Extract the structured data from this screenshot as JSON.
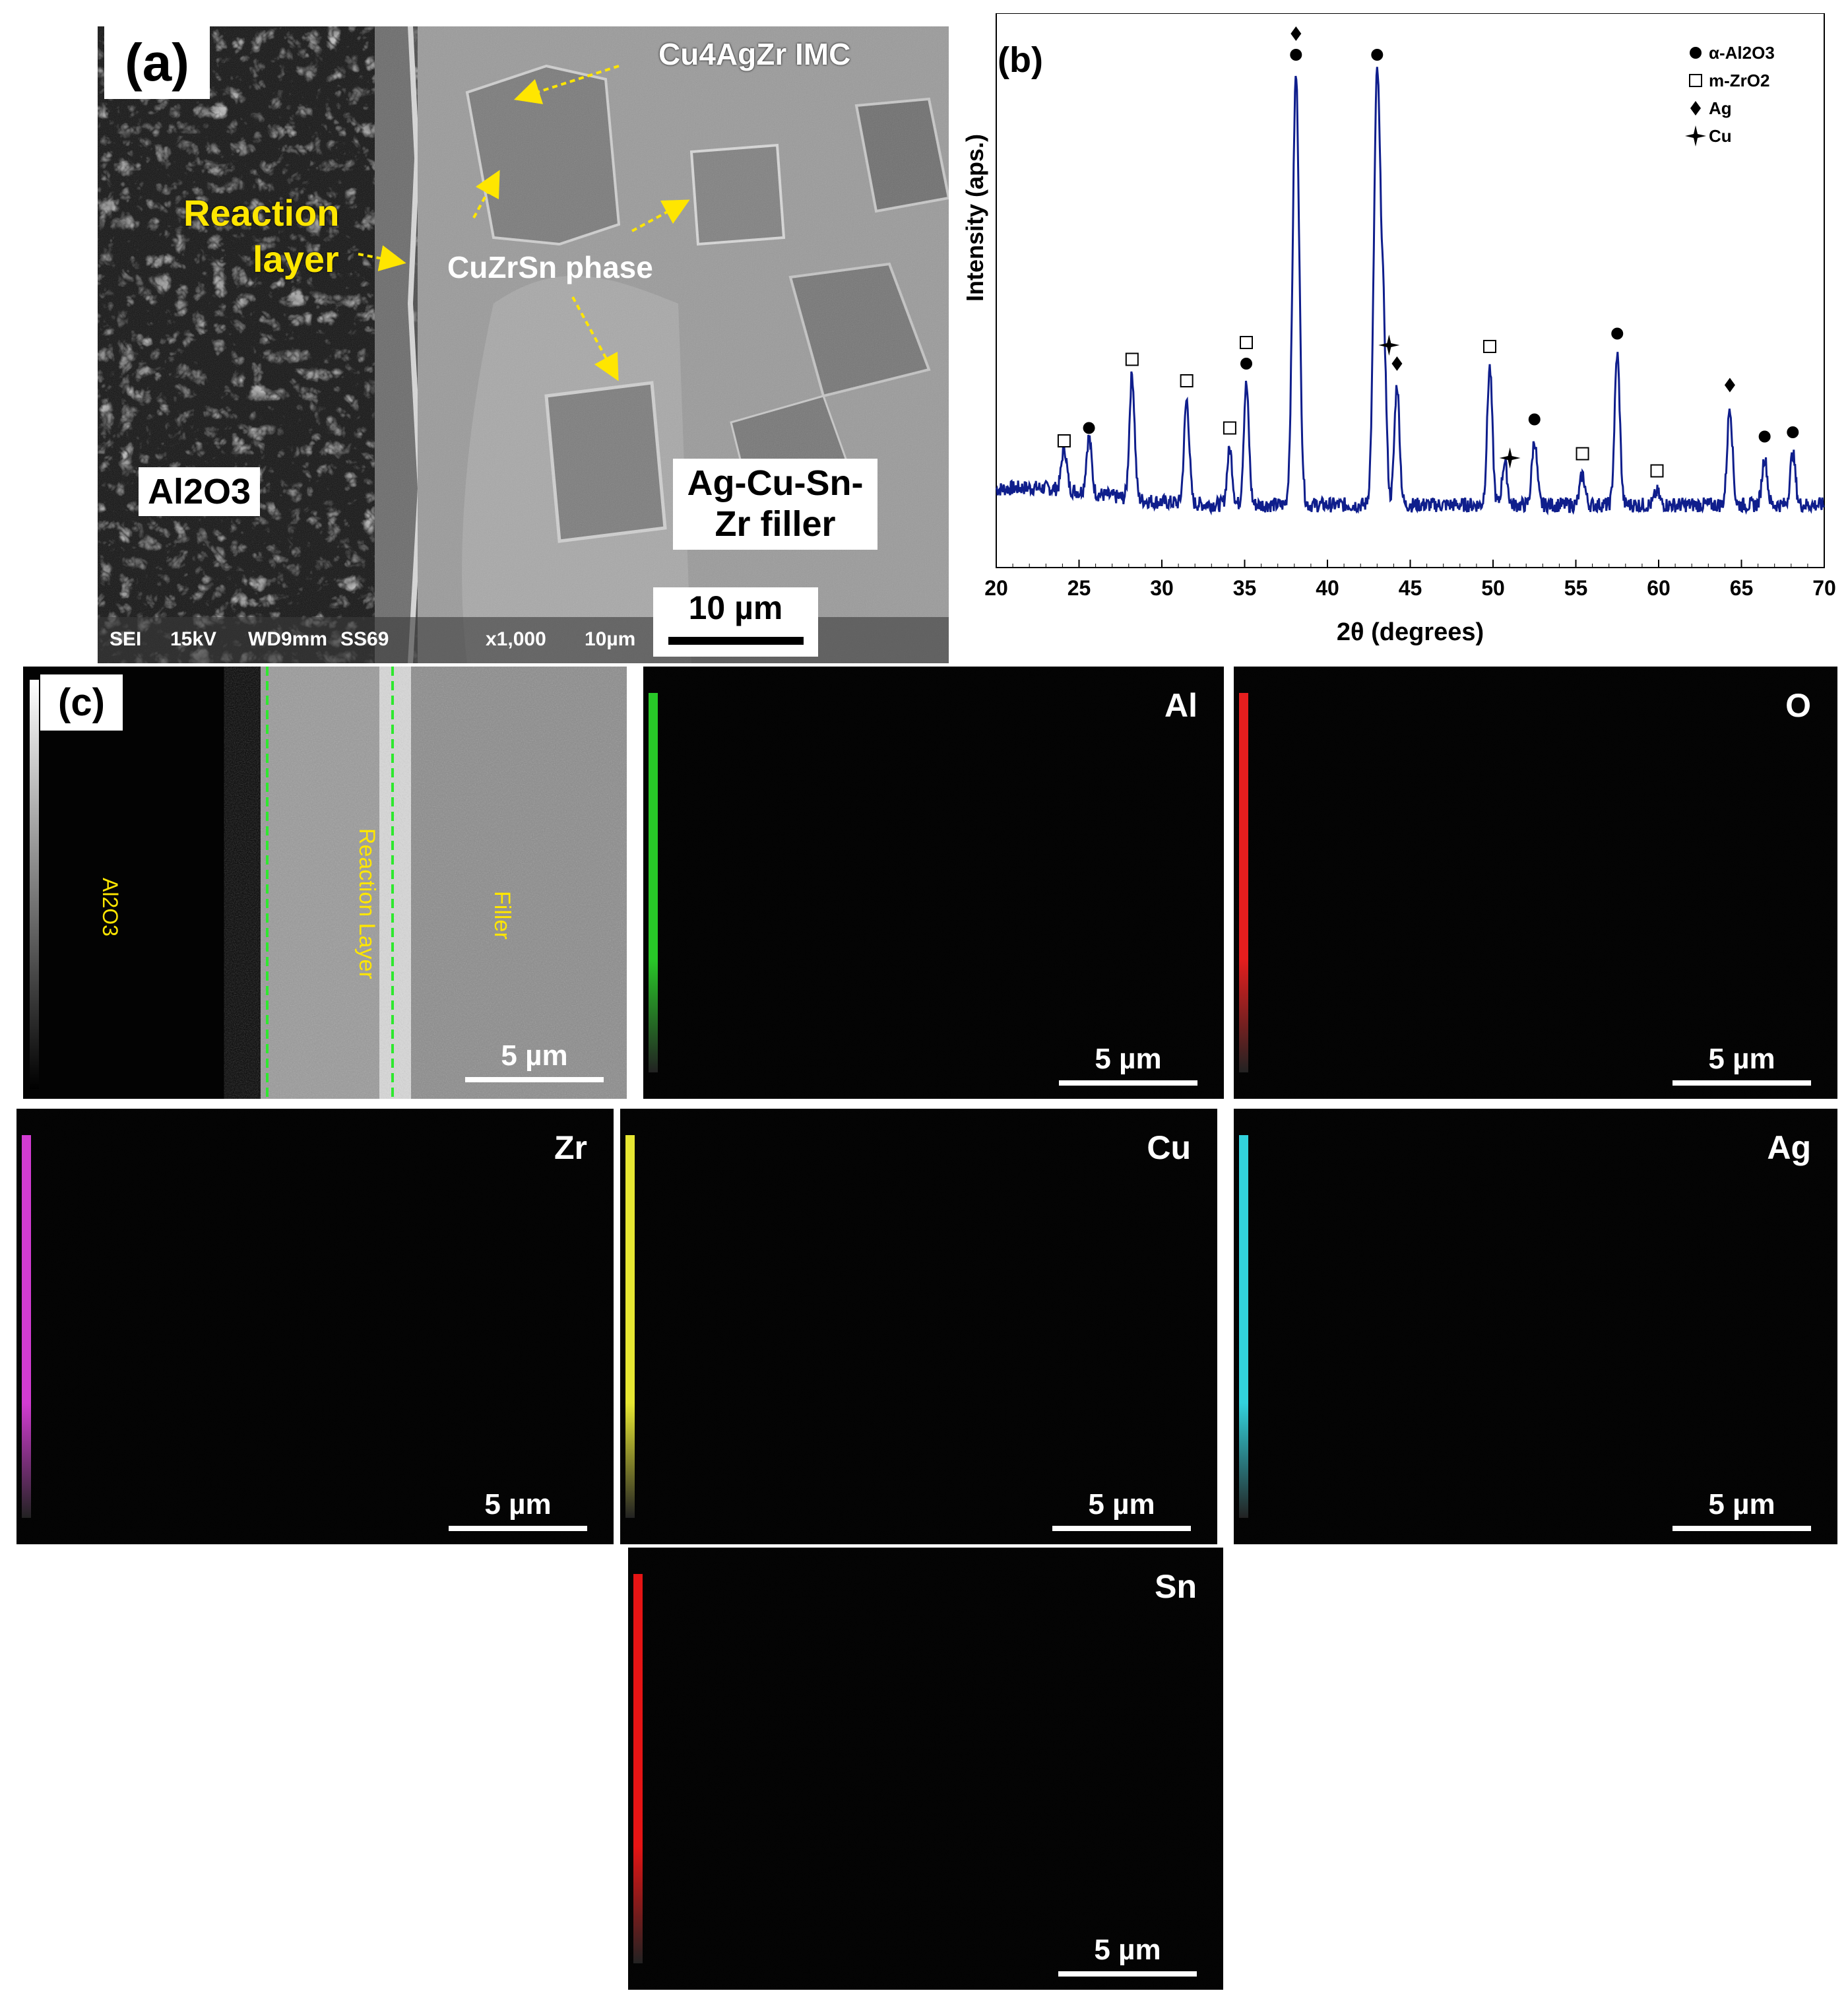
{
  "panel_a": {
    "label": "(a)",
    "annotations": {
      "imc": "Cu4AgZr IMC",
      "reaction_layer_1": "Reaction",
      "reaction_layer_2": "layer",
      "cuzrsn": "CuZrSn phase",
      "al2o3": "Al2O3",
      "filler_1": "Ag-Cu-Sn-",
      "filler_2": "Zr filler"
    },
    "sem_footer": {
      "mode": "SEI",
      "kv": "15kV",
      "wd": "WD9mm",
      "id": "SS69",
      "mag": "x1,000",
      "scale_small": "10µm"
    },
    "scale_bar": "10 µm"
  },
  "panel_b": {
    "label": "(b)",
    "legend": [
      "α-Al2O3",
      "m-ZrO2",
      "Ag",
      "Cu"
    ],
    "legend_markers": [
      "circle",
      "square",
      "diamond",
      "star"
    ]
  },
  "chart_data": {
    "type": "line",
    "xlabel": "2θ (degrees)",
    "ylabel": "Intensity (aps.)",
    "xlim": [
      20,
      70
    ],
    "xticks": [
      20,
      25,
      30,
      35,
      40,
      45,
      50,
      55,
      60,
      65,
      70
    ],
    "line_color": "#0f1e8c",
    "peaks": [
      {
        "x": 24.1,
        "y": 0.1,
        "phase": "m-ZrO2"
      },
      {
        "x": 25.6,
        "y": 0.13,
        "phase": "α-Al2O3"
      },
      {
        "x": 28.2,
        "y": 0.29,
        "phase": "m-ZrO2"
      },
      {
        "x": 31.5,
        "y": 0.24,
        "phase": "m-ZrO2"
      },
      {
        "x": 34.1,
        "y": 0.13,
        "phase": "m-ZrO2"
      },
      {
        "x": 35.1,
        "y": 0.28,
        "phase": "α-Al2O3 / m-ZrO2"
      },
      {
        "x": 38.1,
        "y": 1.0,
        "phase": "α-Al2O3 / Ag"
      },
      {
        "x": 43.0,
        "y": 1.0,
        "phase": "α-Al2O3"
      },
      {
        "x": 43.4,
        "y": 0.36,
        "phase": "Cu"
      },
      {
        "x": 44.2,
        "y": 0.28,
        "phase": "Ag"
      },
      {
        "x": 49.8,
        "y": 0.32,
        "phase": "m-ZrO2"
      },
      {
        "x": 50.7,
        "y": 0.1,
        "phase": "Cu"
      },
      {
        "x": 52.5,
        "y": 0.15,
        "phase": "α-Al2O3"
      },
      {
        "x": 55.4,
        "y": 0.07,
        "phase": "m-ZrO2"
      },
      {
        "x": 57.5,
        "y": 0.35,
        "phase": "α-Al2O3"
      },
      {
        "x": 59.9,
        "y": 0.03,
        "phase": "m-ZrO2"
      },
      {
        "x": 64.3,
        "y": 0.23,
        "phase": "Ag"
      },
      {
        "x": 66.4,
        "y": 0.11,
        "phase": "α-Al2O3"
      },
      {
        "x": 68.1,
        "y": 0.12,
        "phase": "α-Al2O3"
      }
    ]
  },
  "panel_c": {
    "label": "(c)",
    "sem_labels": {
      "al2o3": "Al2O3",
      "reaction": "Reaction Layer",
      "filler": "Filler"
    },
    "scale_bar": "5 µm",
    "maps": [
      {
        "element": "Al",
        "color": "#28c828"
      },
      {
        "element": "O",
        "color": "#e61e1e"
      },
      {
        "element": "Zr",
        "color": "#d23cd2"
      },
      {
        "element": "Cu",
        "color": "#e6e632"
      },
      {
        "element": "Ag",
        "color": "#32d2dc"
      },
      {
        "element": "Sn",
        "color": "#e61414"
      }
    ]
  }
}
